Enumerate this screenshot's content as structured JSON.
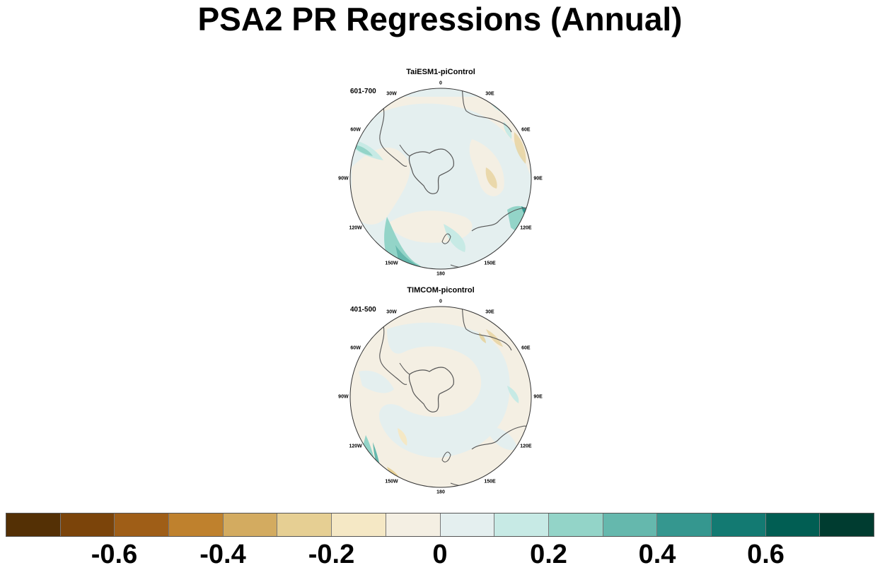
{
  "title": "PSA2 PR Regressions (Annual)",
  "panels": [
    {
      "model": "TaiESM1-piControl",
      "years": "601-700"
    },
    {
      "model": "TIMCOM-picontrol",
      "years": "401-500"
    }
  ],
  "longitude_labels": [
    "0",
    "30E",
    "60E",
    "90E",
    "120E",
    "150E",
    "180",
    "150W",
    "120W",
    "90W",
    "60W",
    "30W"
  ],
  "colorbar": {
    "colors": [
      "#543005",
      "#7b440a",
      "#9f5e17",
      "#bf812d",
      "#d3ab60",
      "#e6cf93",
      "#f5e8c5",
      "#f4efe3",
      "#e4efef",
      "#c7eae5",
      "#93d4c8",
      "#65b8ad",
      "#35978f",
      "#137a72",
      "#015e53",
      "#003c30"
    ],
    "labels": [
      "-0.6",
      "-0.4",
      "-0.2",
      "0",
      "0.2",
      "0.4",
      "0.6"
    ]
  },
  "colors": {
    "ocean_base": "#e4efef",
    "coast": "#555555",
    "text": "#000000"
  }
}
